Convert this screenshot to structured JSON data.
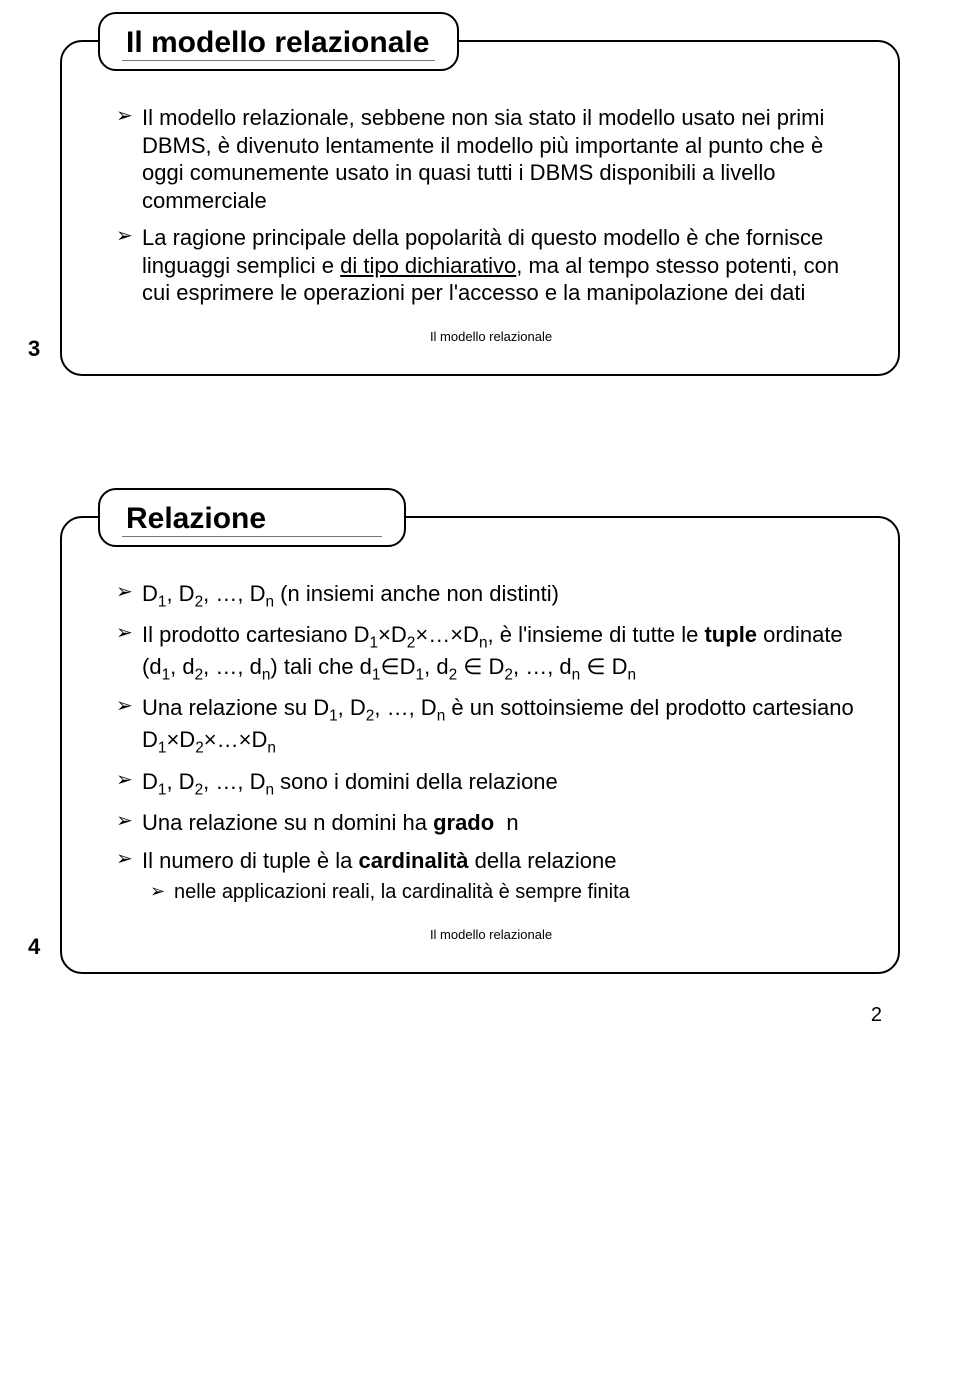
{
  "slide1": {
    "number": "3",
    "title": "Il modello relazionale",
    "footer": "Il modello relazionale",
    "bullets": [
      {
        "html": "Il modello relazionale, sebbene non sia stato il modello usato nei primi DBMS, è divenuto lentamente il modello più importante al punto che è oggi comunemente usato in quasi tutti i DBMS disponibili a livello commerciale"
      },
      {
        "html": "La ragione principale della popolarità di questo modello è che fornisce linguaggi semplici e <span class=\"underline\">di tipo dichiarativo</span>, ma al tempo stesso potenti, con cui esprimere le operazioni per l'accesso e la manipolazione dei dati"
      }
    ]
  },
  "slide2": {
    "number": "4",
    "title": "Relazione",
    "footer": "Il modello relazionale",
    "bullets": [
      {
        "html": "D<span class=\"sub-txt\">1</span>, D<span class=\"sub-txt\">2</span>, …, D<span class=\"sub-txt\">n</span> (n insiemi anche non distinti)"
      },
      {
        "html": "Il prodotto cartesiano D<span class=\"sub-txt\">1</span>×D<span class=\"sub-txt\">2</span>×…×D<span class=\"sub-txt\">n</span>, è l'insieme di tutte le <span class=\"bold\">tuple</span> ordinate (d<span class=\"sub-txt\">1</span>, d<span class=\"sub-txt\">2</span>, …, d<span class=\"sub-txt\">n</span>) tali che d<span class=\"sub-txt\">1</span>∈D<span class=\"sub-txt\">1</span>, d<span class=\"sub-txt\">2</span> ∈ D<span class=\"sub-txt\">2</span>, …, d<span class=\"sub-txt\">n</span> ∈ D<span class=\"sub-txt\">n</span>"
      },
      {
        "html": "Una relazione su D<span class=\"sub-txt\">1</span>, D<span class=\"sub-txt\">2</span>, …, D<span class=\"sub-txt\">n</span> è un sottoinsieme del prodotto cartesiano D<span class=\"sub-txt\">1</span>×D<span class=\"sub-txt\">2</span>×…×D<span class=\"sub-txt\">n</span>"
      },
      {
        "html": "D<span class=\"sub-txt\">1</span>, D<span class=\"sub-txt\">2</span>, …, D<span class=\"sub-txt\">n</span> sono i domini della relazione"
      },
      {
        "html": "Una relazione su n domini ha <span class=\"bold\">grado</span>&nbsp; n"
      },
      {
        "html": "Il numero di  tuple è la <span class=\"bold\">cardinalità </span>della relazione",
        "sub": [
          {
            "html": "nelle applicazioni reali, la cardinalità è sempre finita"
          }
        ]
      }
    ]
  },
  "pageNumber": "2"
}
